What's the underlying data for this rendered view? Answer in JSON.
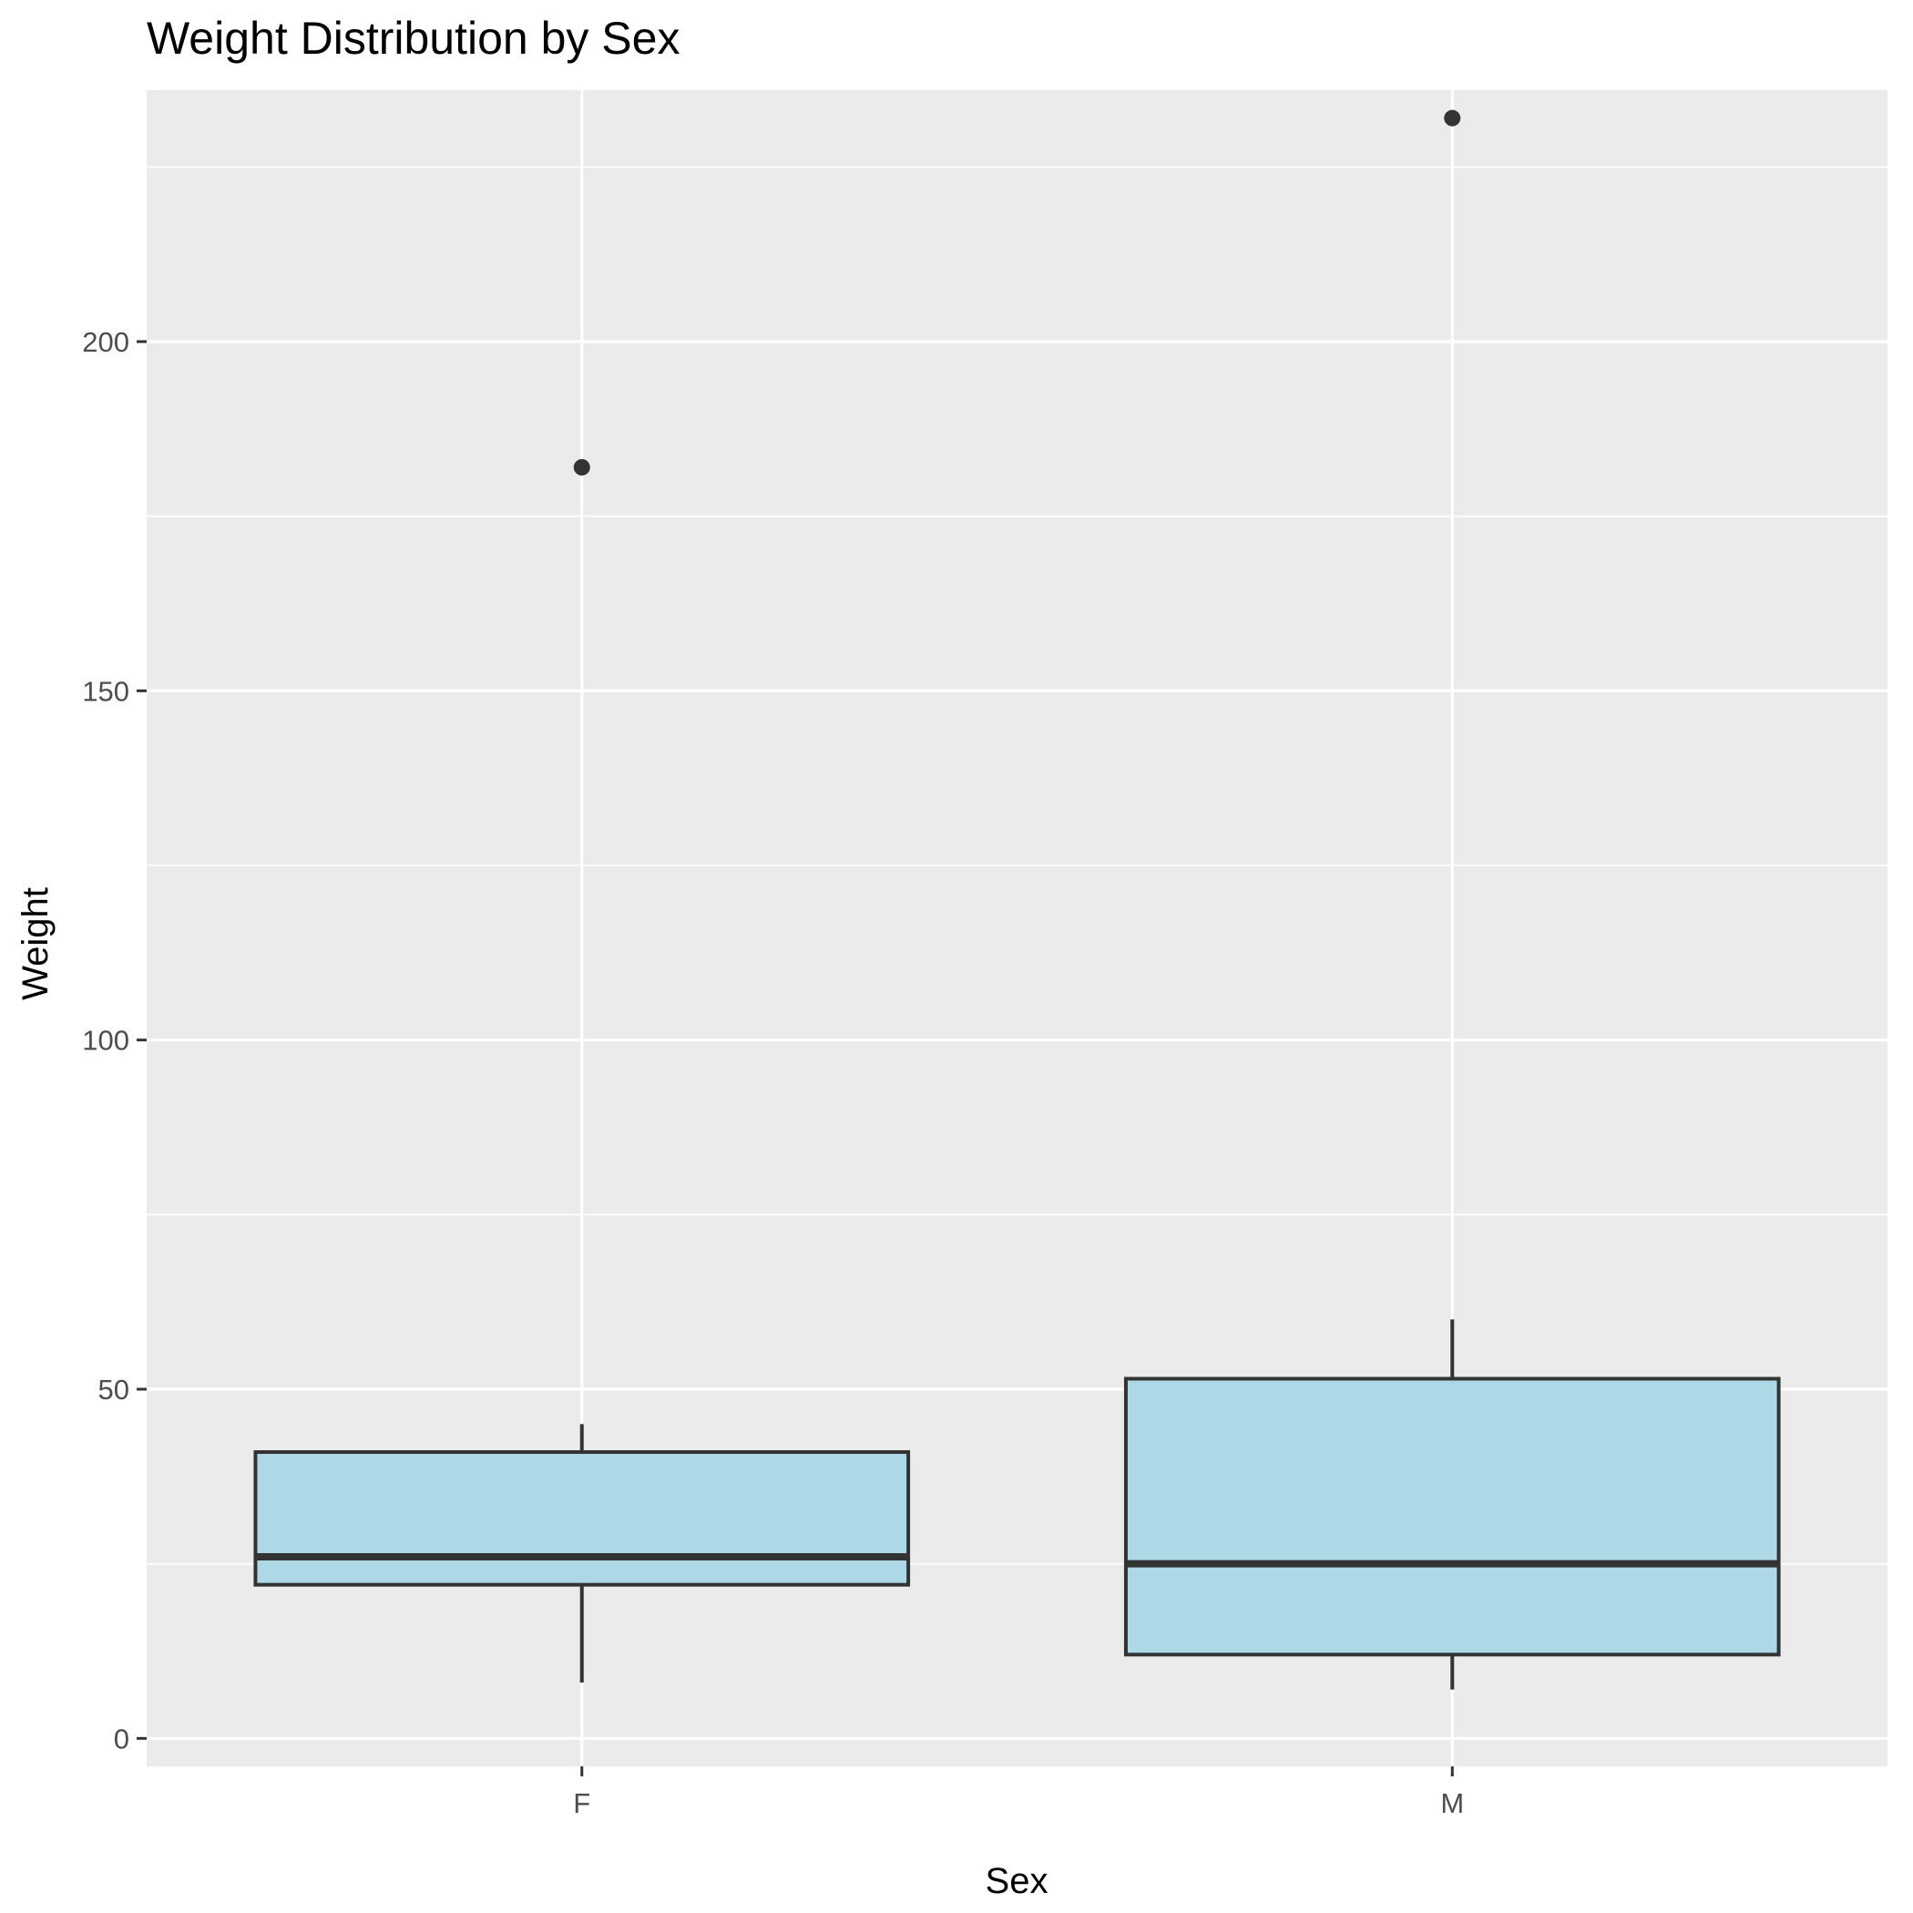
{
  "chart_data": {
    "type": "boxplot",
    "title": "Weight Distribution by Sex",
    "xlabel": "Sex",
    "ylabel": "Weight",
    "categories": [
      "F",
      "M"
    ],
    "ylim": [
      -4,
      236
    ],
    "yticks": [
      0,
      50,
      100,
      150,
      200
    ],
    "ytick_labels": [
      "0",
      "50",
      "100",
      "150",
      "200"
    ],
    "grid": true,
    "boxes": [
      {
        "category": "F",
        "whisker_low": 8,
        "q1": 22,
        "median": 26,
        "q3": 41,
        "whisker_high": 45,
        "outliers": [
          182
        ]
      },
      {
        "category": "M",
        "whisker_low": 7,
        "q1": 12,
        "median": 25,
        "q3": 51.5,
        "whisker_high": 60,
        "outliers": [
          232
        ]
      }
    ],
    "colors": {
      "box_fill": "#add8e6",
      "box_stroke": "#333333",
      "panel": "#ebebeb",
      "grid": "#ffffff",
      "outlier": "#333333"
    }
  }
}
